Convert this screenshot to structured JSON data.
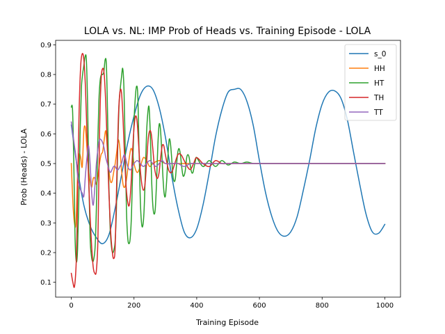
{
  "chart_data": {
    "type": "line",
    "title": "LOLA vs. NL: IMP Prob of Heads vs. Training Episode - LOLA",
    "xlabel": "Training Episode",
    "ylabel": "Prob (Heads) - LOLA",
    "xlim": [
      -50,
      1050
    ],
    "ylim": [
      0.05,
      0.915
    ],
    "xticks": [
      0,
      200,
      400,
      600,
      800,
      1000
    ],
    "yticks": [
      0.1,
      0.2,
      0.3,
      0.4,
      0.5,
      0.6,
      0.7,
      0.8,
      0.9
    ],
    "grid": false,
    "legend_position": "top-right",
    "series": [
      {
        "name": "s_0",
        "color": "#1f77b4",
        "x": [
          0,
          20,
          40,
          60,
          80,
          100,
          120,
          140,
          160,
          180,
          200,
          220,
          240,
          260,
          280,
          300,
          320,
          340,
          360,
          380,
          400,
          420,
          440,
          460,
          480,
          500,
          520,
          540,
          560,
          580,
          600,
          620,
          640,
          660,
          680,
          700,
          720,
          740,
          760,
          780,
          800,
          820,
          840,
          860,
          880,
          900,
          920,
          940,
          960,
          980,
          1000
        ],
        "y": [
          0.63,
          0.48,
          0.36,
          0.29,
          0.25,
          0.23,
          0.26,
          0.35,
          0.46,
          0.57,
          0.66,
          0.73,
          0.76,
          0.75,
          0.69,
          0.59,
          0.46,
          0.35,
          0.27,
          0.25,
          0.28,
          0.36,
          0.47,
          0.59,
          0.68,
          0.74,
          0.75,
          0.75,
          0.71,
          0.63,
          0.51,
          0.4,
          0.32,
          0.27,
          0.255,
          0.27,
          0.32,
          0.41,
          0.51,
          0.62,
          0.7,
          0.74,
          0.745,
          0.72,
          0.65,
          0.54,
          0.43,
          0.33,
          0.27,
          0.265,
          0.295
        ]
      },
      {
        "name": "HH",
        "color": "#ff7f0e",
        "x": [
          0,
          5,
          10,
          15,
          20,
          25,
          30,
          35,
          40,
          45,
          50,
          55,
          60,
          65,
          70,
          75,
          80,
          85,
          90,
          95,
          100,
          105,
          110,
          115,
          120,
          125,
          130,
          135,
          140,
          145,
          150,
          155,
          160,
          165,
          170,
          175,
          180,
          185,
          190,
          195,
          200,
          210,
          220,
          230,
          240,
          250,
          260,
          280,
          300,
          320,
          340,
          360,
          400,
          450,
          500,
          600,
          700,
          800,
          900,
          1000
        ],
        "y": [
          0.5,
          0.37,
          0.3,
          0.3,
          0.46,
          0.53,
          0.52,
          0.49,
          0.61,
          0.62,
          0.55,
          0.48,
          0.44,
          0.42,
          0.45,
          0.45,
          0.43,
          0.46,
          0.5,
          0.53,
          0.54,
          0.58,
          0.61,
          0.55,
          0.48,
          0.44,
          0.44,
          0.47,
          0.5,
          0.54,
          0.58,
          0.55,
          0.48,
          0.43,
          0.42,
          0.44,
          0.48,
          0.52,
          0.55,
          0.54,
          0.5,
          0.47,
          0.49,
          0.52,
          0.51,
          0.49,
          0.5,
          0.51,
          0.5,
          0.5,
          0.5,
          0.5,
          0.5,
          0.5,
          0.5,
          0.5,
          0.5,
          0.5,
          0.5,
          0.5
        ]
      },
      {
        "name": "HT",
        "color": "#2ca02c",
        "x": [
          0,
          4,
          8,
          12,
          16,
          20,
          24,
          28,
          32,
          36,
          40,
          44,
          48,
          52,
          56,
          60,
          64,
          68,
          72,
          76,
          80,
          84,
          88,
          92,
          96,
          100,
          104,
          108,
          112,
          116,
          120,
          124,
          128,
          132,
          136,
          140,
          144,
          148,
          152,
          156,
          160,
          164,
          168,
          172,
          176,
          180,
          184,
          188,
          192,
          196,
          200,
          204,
          208,
          212,
          216,
          220,
          224,
          228,
          232,
          236,
          240,
          244,
          248,
          252,
          256,
          260,
          264,
          268,
          272,
          276,
          280,
          284,
          288,
          292,
          296,
          300,
          304,
          308,
          312,
          316,
          320,
          324,
          328,
          332,
          336,
          340,
          344,
          348,
          352,
          356,
          360,
          364,
          368,
          372,
          376,
          380,
          384,
          388,
          392,
          396,
          400,
          420,
          440,
          460,
          480,
          500,
          520,
          540,
          560,
          580,
          600,
          620,
          650,
          700,
          800,
          900,
          1000
        ],
        "y": [
          0.69,
          0.68,
          0.5,
          0.25,
          0.17,
          0.21,
          0.38,
          0.6,
          0.75,
          0.8,
          0.83,
          0.86,
          0.85,
          0.7,
          0.45,
          0.25,
          0.19,
          0.17,
          0.18,
          0.22,
          0.35,
          0.55,
          0.71,
          0.78,
          0.8,
          0.8,
          0.81,
          0.85,
          0.83,
          0.65,
          0.42,
          0.28,
          0.22,
          0.2,
          0.21,
          0.24,
          0.35,
          0.55,
          0.69,
          0.75,
          0.79,
          0.82,
          0.75,
          0.55,
          0.34,
          0.25,
          0.23,
          0.25,
          0.33,
          0.49,
          0.64,
          0.72,
          0.76,
          0.73,
          0.55,
          0.38,
          0.3,
          0.29,
          0.34,
          0.46,
          0.6,
          0.67,
          0.69,
          0.6,
          0.45,
          0.36,
          0.33,
          0.35,
          0.44,
          0.56,
          0.63,
          0.62,
          0.55,
          0.46,
          0.4,
          0.39,
          0.44,
          0.52,
          0.58,
          0.57,
          0.52,
          0.46,
          0.44,
          0.45,
          0.5,
          0.54,
          0.55,
          0.53,
          0.49,
          0.46,
          0.46,
          0.48,
          0.52,
          0.53,
          0.52,
          0.49,
          0.47,
          0.47,
          0.49,
          0.51,
          0.52,
          0.49,
          0.51,
          0.49,
          0.51,
          0.495,
          0.505,
          0.5,
          0.505,
          0.5,
          0.5,
          0.5,
          0.5,
          0.5,
          0.5,
          0.5,
          0.5
        ]
      },
      {
        "name": "TH",
        "color": "#d62728",
        "x": [
          0,
          5,
          10,
          15,
          18,
          20,
          25,
          30,
          35,
          40,
          45,
          50,
          55,
          60,
          65,
          70,
          75,
          80,
          85,
          90,
          95,
          100,
          105,
          110,
          115,
          120,
          125,
          130,
          135,
          140,
          145,
          150,
          155,
          160,
          165,
          170,
          175,
          180,
          185,
          190,
          195,
          200,
          205,
          210,
          215,
          220,
          225,
          230,
          235,
          240,
          245,
          250,
          255,
          260,
          265,
          270,
          275,
          280,
          285,
          290,
          295,
          300,
          310,
          320,
          330,
          340,
          350,
          360,
          370,
          380,
          390,
          400,
          420,
          440,
          460,
          480,
          500,
          550,
          600,
          700,
          800,
          900,
          1000
        ],
        "y": [
          0.13,
          0.1,
          0.085,
          0.15,
          0.26,
          0.4,
          0.68,
          0.83,
          0.87,
          0.85,
          0.76,
          0.6,
          0.45,
          0.32,
          0.22,
          0.15,
          0.13,
          0.14,
          0.25,
          0.6,
          0.78,
          0.82,
          0.8,
          0.7,
          0.55,
          0.4,
          0.28,
          0.21,
          0.18,
          0.22,
          0.45,
          0.65,
          0.74,
          0.74,
          0.65,
          0.52,
          0.42,
          0.37,
          0.36,
          0.42,
          0.53,
          0.62,
          0.66,
          0.64,
          0.56,
          0.48,
          0.43,
          0.41,
          0.43,
          0.5,
          0.58,
          0.61,
          0.6,
          0.55,
          0.49,
          0.46,
          0.45,
          0.47,
          0.52,
          0.56,
          0.56,
          0.53,
          0.48,
          0.47,
          0.5,
          0.53,
          0.53,
          0.51,
          0.49,
          0.48,
          0.5,
          0.52,
          0.5,
          0.49,
          0.51,
          0.5,
          0.5,
          0.5,
          0.5,
          0.5,
          0.5,
          0.5,
          0.5
        ]
      },
      {
        "name": "TT",
        "color": "#9467bd",
        "x": [
          0,
          5,
          10,
          15,
          20,
          25,
          30,
          35,
          40,
          45,
          50,
          55,
          60,
          65,
          70,
          75,
          80,
          85,
          90,
          95,
          100,
          105,
          110,
          115,
          120,
          125,
          130,
          135,
          140,
          145,
          150,
          155,
          160,
          165,
          170,
          175,
          180,
          185,
          190,
          195,
          200,
          210,
          220,
          230,
          240,
          250,
          260,
          270,
          280,
          290,
          300,
          320,
          340,
          360,
          380,
          400,
          450,
          500,
          600,
          700,
          800,
          900,
          1000
        ],
        "y": [
          0.64,
          0.6,
          0.56,
          0.52,
          0.46,
          0.43,
          0.41,
          0.4,
          0.39,
          0.46,
          0.52,
          0.56,
          0.5,
          0.4,
          0.36,
          0.42,
          0.5,
          0.55,
          0.58,
          0.58,
          0.57,
          0.55,
          0.52,
          0.5,
          0.48,
          0.47,
          0.48,
          0.49,
          0.49,
          0.48,
          0.48,
          0.49,
          0.5,
          0.52,
          0.53,
          0.51,
          0.49,
          0.48,
          0.48,
          0.49,
          0.5,
          0.51,
          0.5,
          0.49,
          0.5,
          0.51,
          0.5,
          0.49,
          0.5,
          0.51,
          0.5,
          0.5,
          0.5,
          0.49,
          0.5,
          0.5,
          0.5,
          0.5,
          0.5,
          0.5,
          0.5,
          0.5,
          0.5
        ]
      }
    ]
  }
}
